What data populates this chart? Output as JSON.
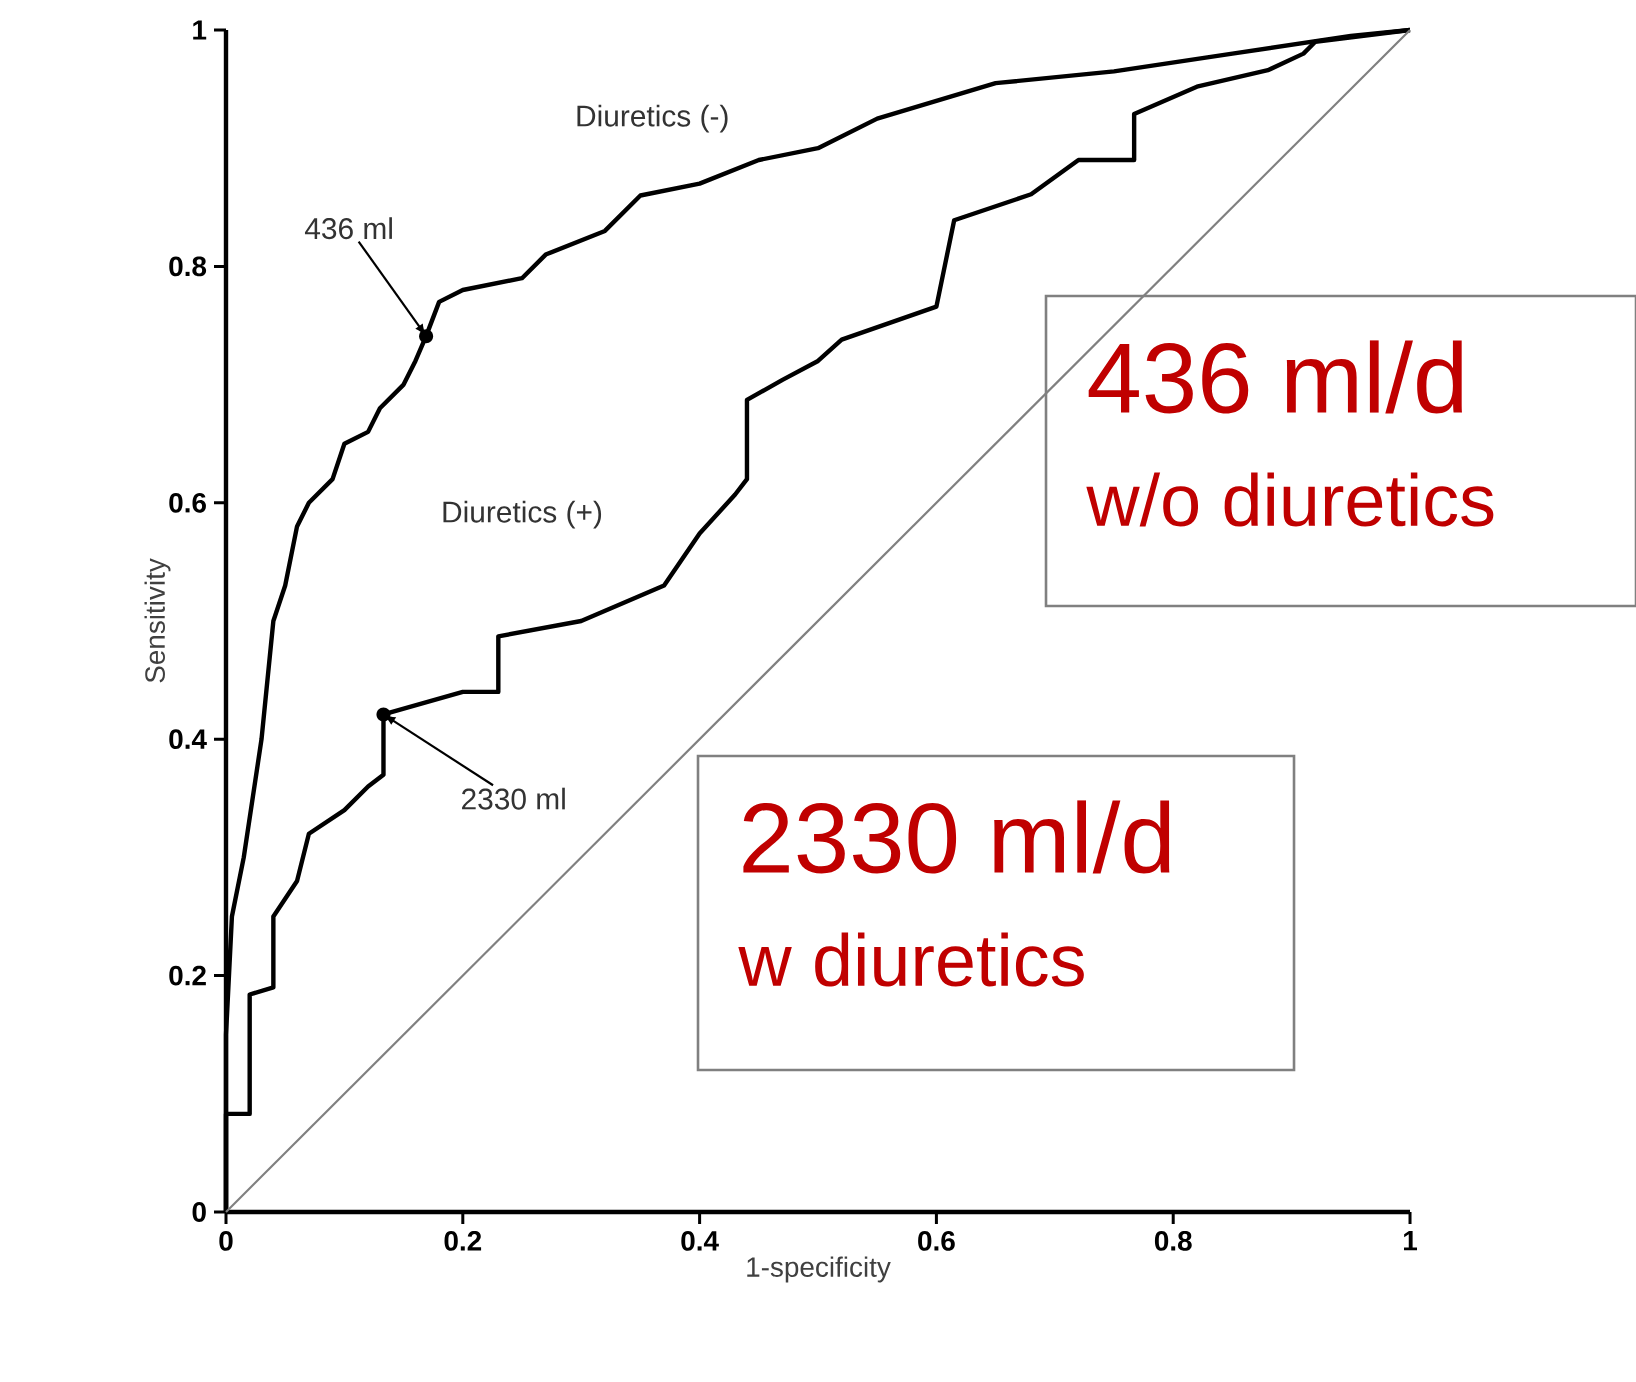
{
  "chart_data": {
    "type": "line",
    "xlabel": "1-specificity",
    "ylabel": "Sensitivity",
    "xlim": [
      0,
      1
    ],
    "ylim": [
      0,
      1
    ],
    "xticks": [
      0,
      0.2,
      0.4,
      0.6,
      0.8,
      1
    ],
    "yticks": [
      0,
      0.2,
      0.4,
      0.6,
      0.8,
      1
    ],
    "grid": false,
    "marker": "none",
    "line_style": "solid",
    "series": [
      {
        "name": "Diuretics (-)",
        "color": "#000000",
        "x": [
          0,
          0,
          0.005,
          0.015,
          0.03,
          0.04,
          0.05,
          0.06,
          0.07,
          0.09,
          0.1,
          0.12,
          0.13,
          0.15,
          0.16,
          0.169,
          0.18,
          0.2,
          0.25,
          0.27,
          0.32,
          0.35,
          0.4,
          0.45,
          0.5,
          0.55,
          0.6,
          0.65,
          0.75,
          0.85,
          0.95,
          1
        ],
        "values": [
          0,
          0.15,
          0.25,
          0.3,
          0.4,
          0.5,
          0.53,
          0.58,
          0.6,
          0.62,
          0.65,
          0.66,
          0.68,
          0.7,
          0.72,
          0.741,
          0.77,
          0.78,
          0.79,
          0.81,
          0.83,
          0.86,
          0.87,
          0.89,
          0.9,
          0.925,
          0.94,
          0.955,
          0.965,
          0.98,
          0.995,
          1
        ]
      },
      {
        "name": "Diuretics (+)",
        "color": "#000000",
        "x": [
          0,
          0,
          0.02,
          0.02,
          0.04,
          0.04,
          0.06,
          0.07,
          0.1,
          0.12,
          0.133,
          0.133,
          0.2,
          0.23,
          0.23,
          0.3,
          0.37,
          0.4,
          0.43,
          0.44,
          0.44,
          0.47,
          0.5,
          0.52,
          0.6,
          0.615,
          0.68,
          0.72,
          0.767,
          0.767,
          0.82,
          0.88,
          0.91,
          0.92,
          1
        ],
        "values": [
          0,
          0.083,
          0.083,
          0.184,
          0.19,
          0.25,
          0.28,
          0.32,
          0.34,
          0.36,
          0.37,
          0.421,
          0.44,
          0.44,
          0.487,
          0.5,
          0.53,
          0.574,
          0.607,
          0.62,
          0.687,
          0.704,
          0.72,
          0.738,
          0.766,
          0.839,
          0.861,
          0.89,
          0.89,
          0.929,
          0.952,
          0.966,
          0.98,
          0.99,
          1
        ]
      },
      {
        "color": "#808080",
        "x": [
          0,
          1
        ],
        "values": [
          0,
          1
        ]
      }
    ],
    "annotations": [
      {
        "text": "436 ml",
        "x": 0.169,
        "y": 0.741
      },
      {
        "text": "2330 ml",
        "x": 0.133,
        "y": 0.421
      },
      "436 ml/d",
      "w/o diuretics",
      "2330 ml/d",
      "w diuretics"
    ]
  }
}
